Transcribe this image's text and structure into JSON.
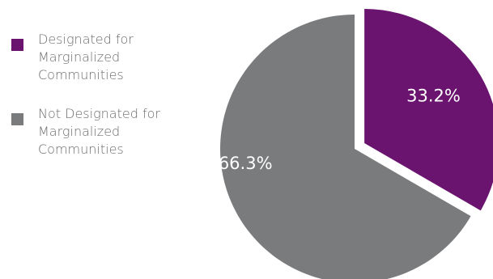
{
  "chart_data": {
    "type": "pie",
    "series": [
      {
        "name": "Designated for Marginalized Communities",
        "value": 33.2,
        "label": "33.2%",
        "color": "#6a1470",
        "exploded": true
      },
      {
        "name": "Not Designated for Marginalized Communities",
        "value": 66.3,
        "label": "66.3%",
        "color": "#7a7b7d",
        "exploded": false
      }
    ],
    "legend": [
      {
        "label": "Designated for\nMarginalized\nCommunities",
        "color": "#6a1470"
      },
      {
        "label": "Not Designated for\nMarginalized\nCommunities",
        "color": "#7a7b7d"
      }
    ],
    "legend_position": "left"
  }
}
